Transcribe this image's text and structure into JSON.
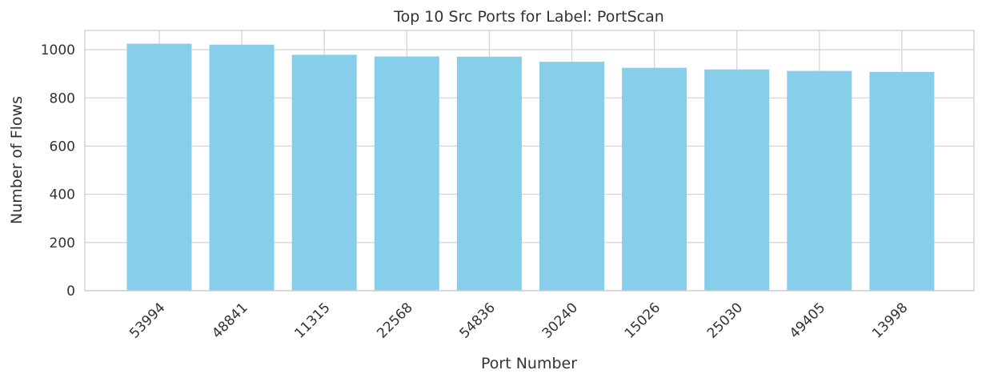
{
  "chart_data": {
    "type": "bar",
    "title": "Top 10 Src Ports for Label: PortScan",
    "xlabel": "Port Number",
    "ylabel": "Number of Flows",
    "categories": [
      "53994",
      "48841",
      "11315",
      "22568",
      "54836",
      "30240",
      "15026",
      "25030",
      "49405",
      "13998"
    ],
    "values": [
      1025,
      1021,
      979,
      972,
      971,
      950,
      925,
      918,
      912,
      908
    ],
    "ylim": [
      0,
      1080
    ],
    "yticks": [
      0,
      200,
      400,
      600,
      800,
      1000
    ],
    "grid": true,
    "legend": "none",
    "colors": {
      "bar": "#87ceeb",
      "grid": "#d6d6d6",
      "text": "#333333"
    }
  }
}
